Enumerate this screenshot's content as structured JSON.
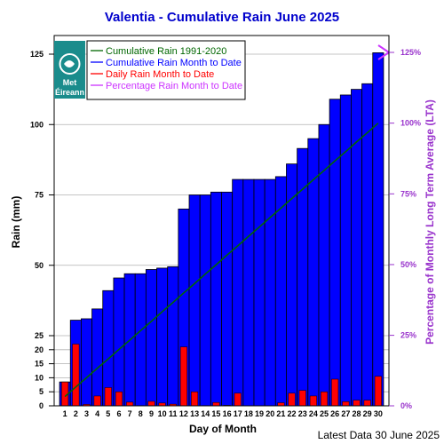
{
  "chart_data": {
    "type": "bar",
    "title": "Valentia - Cumulative Rain June   2025",
    "xlabel": "Day of Month",
    "ylabel": "Rain (mm)",
    "y2label": "Percentage  of Monthly Long Term Average (LTA)",
    "footer": "Latest Data 30 June 2025",
    "days": [
      1,
      2,
      3,
      4,
      5,
      6,
      7,
      8,
      9,
      10,
      11,
      12,
      13,
      14,
      15,
      16,
      17,
      18,
      19,
      20,
      21,
      22,
      23,
      24,
      25,
      26,
      27,
      28,
      29,
      30
    ],
    "series": [
      {
        "name": "Cumulative Rain 1991-2020",
        "color": "#006600",
        "kind": "line",
        "values": [
          3.3,
          6.7,
          10.0,
          13.4,
          16.7,
          20.1,
          23.4,
          26.8,
          30.1,
          33.5,
          36.8,
          40.2,
          43.5,
          46.9,
          50.2,
          53.6,
          56.9,
          60.3,
          63.6,
          67.0,
          70.3,
          73.7,
          77.0,
          80.4,
          83.7,
          87.1,
          90.4,
          93.8,
          97.1,
          100.5
        ]
      },
      {
        "name": "Cumulative Rain Month to Date",
        "color": "#0000ff",
        "kind": "bar",
        "values": [
          8.5,
          30.5,
          31.0,
          34.5,
          41.0,
          45.5,
          47.0,
          47.0,
          48.5,
          49.0,
          49.5,
          70.0,
          75.0,
          75.0,
          76.0,
          76.0,
          80.5,
          80.5,
          80.5,
          80.5,
          81.5,
          86.0,
          91.5,
          95.0,
          100.0,
          109.0,
          110.5,
          112.5,
          114.5,
          125.5
        ]
      },
      {
        "name": "Daily Rain Month to Date",
        "color": "#ff0000",
        "kind": "bar",
        "values": [
          8.5,
          22.0,
          0.5,
          3.5,
          6.5,
          5.0,
          1.3,
          0.1,
          1.6,
          1.0,
          0.6,
          21.0,
          5.0,
          0.1,
          1.2,
          0.2,
          4.5,
          0.0,
          0.0,
          0.0,
          1.1,
          4.5,
          5.5,
          3.5,
          5.0,
          9.5,
          1.5,
          2.0,
          2.0,
          10.5
        ]
      },
      {
        "name": "Percentage Rain Month to Date",
        "color": "#cc33ff",
        "kind": "marker",
        "values": [
          125
        ]
      }
    ],
    "ylim": [
      0,
      130
    ],
    "y_ticks": [
      0,
      5,
      10,
      15,
      20,
      25,
      50,
      75,
      100,
      125
    ],
    "y2_ticks": [
      "0%",
      "25%",
      "50%",
      "75%",
      "100%",
      "125%"
    ],
    "y2_tick_values": [
      0,
      25,
      50,
      75,
      100,
      125
    ],
    "legend": "top-left",
    "grid": true
  },
  "logo": {
    "text_line1": "Met",
    "text_line2": "Éireann",
    "color": "#1a8c8c"
  }
}
